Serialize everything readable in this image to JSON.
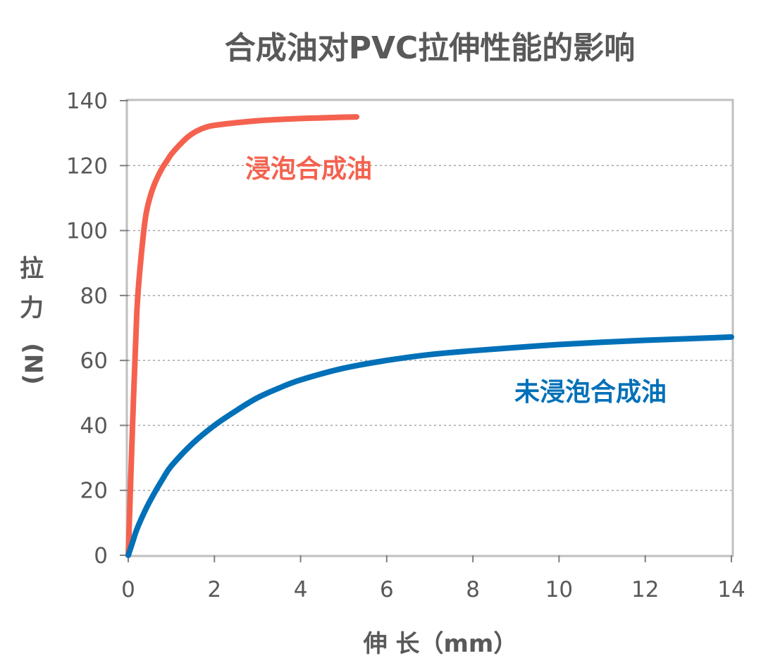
{
  "chart_data": {
    "type": "line",
    "title": "合成油对PVC拉伸性能的影响",
    "xlabel": "伸 长（mm）",
    "ylabel": "拉力 (N)",
    "ylabel_chars": [
      "拉",
      "力",
      "(N)"
    ],
    "xlim": [
      0,
      14
    ],
    "ylim": [
      0,
      140
    ],
    "xticks": [
      0,
      2,
      4,
      6,
      8,
      10,
      12,
      14
    ],
    "yticks": [
      0,
      20,
      40,
      60,
      80,
      100,
      120,
      140
    ],
    "grid": "horizontal dashed",
    "series": [
      {
        "name": "浸泡合成油",
        "color": "#f4624f",
        "x": [
          0,
          0.1,
          0.2,
          0.3,
          0.4,
          0.5,
          0.6,
          0.7,
          0.8,
          0.9,
          1.0,
          1.2,
          1.4,
          1.6,
          1.8,
          2.0,
          2.5,
          3.0,
          3.5,
          4.0,
          4.5,
          5.0,
          5.3
        ],
        "y": [
          0,
          40,
          75,
          92,
          104,
          110,
          114,
          117,
          119.5,
          121.5,
          123.5,
          126.5,
          129,
          130.7,
          131.8,
          132.4,
          133.2,
          133.8,
          134.2,
          134.5,
          134.7,
          134.9,
          135
        ]
      },
      {
        "name": "未浸泡合成油",
        "color": "#0070b8",
        "x": [
          0,
          0.1,
          0.2,
          0.4,
          0.6,
          0.8,
          1.0,
          1.5,
          2.0,
          2.5,
          3.0,
          3.5,
          4.0,
          5.0,
          6.0,
          7.0,
          8.0,
          9.0,
          10.0,
          11.0,
          12.0,
          13.0,
          14.0
        ],
        "y": [
          0,
          4,
          8,
          14,
          19,
          23.5,
          27.5,
          34.5,
          40,
          44.5,
          48.5,
          51.5,
          54,
          57.6,
          60,
          61.8,
          63,
          64,
          64.9,
          65.6,
          66.2,
          66.7,
          67.2
        ]
      }
    ]
  }
}
